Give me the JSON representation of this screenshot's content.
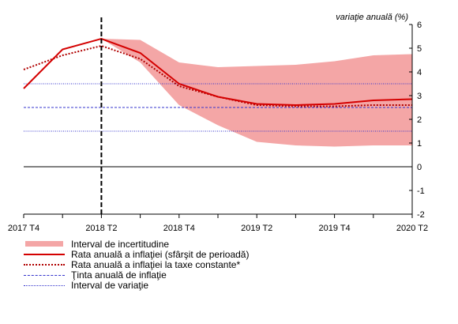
{
  "chart_data": {
    "type": "line",
    "title": "",
    "ylabel": "variaţie anuală (%)",
    "ylim": [
      -2,
      6
    ],
    "yticks": [
      -2,
      -1,
      0,
      1,
      2,
      3,
      4,
      5,
      6
    ],
    "x_categories": [
      "2017 T4",
      "2018 T1",
      "2018 T2",
      "2018 T3",
      "2018 T4",
      "2019 T1",
      "2019 T2",
      "2019 T3",
      "2019 T4",
      "2020 T1",
      "2020 T2"
    ],
    "x_tick_labels": [
      "2017 T4",
      "2018 T2",
      "2018 T4",
      "2019 T2",
      "2019 T4",
      "2020 T2"
    ],
    "x_tick_label_indices": [
      0,
      2,
      4,
      6,
      8,
      10
    ],
    "forecast_start_index": 2,
    "band": {
      "name": "Interval de incertitudine",
      "x": [
        "2018 T2",
        "2018 T3",
        "2018 T4",
        "2019 T1",
        "2019 T2",
        "2019 T3",
        "2019 T4",
        "2020 T1",
        "2020 T2"
      ],
      "upper": [
        5.4,
        5.35,
        4.4,
        4.2,
        4.25,
        4.3,
        4.45,
        4.7,
        4.75
      ],
      "lower": [
        5.4,
        4.4,
        2.6,
        1.75,
        1.05,
        0.9,
        0.85,
        0.9,
        0.9
      ]
    },
    "series": [
      {
        "name": "Rata anuală a inflaţiei (sfârşit de perioadă)",
        "x": [
          "2017 T4",
          "2018 T1",
          "2018 T2",
          "2018 T3",
          "2018 T4",
          "2019 T1",
          "2019 T2",
          "2019 T3",
          "2019 T4",
          "2020 T1",
          "2020 T2"
        ],
        "values": [
          3.3,
          4.95,
          5.4,
          4.8,
          3.5,
          2.95,
          2.65,
          2.6,
          2.65,
          2.8,
          2.85
        ]
      },
      {
        "name": "Rata anuală a inflaţiei la taxe constante*",
        "x": [
          "2017 T4",
          "2018 T1",
          "2018 T2",
          "2018 T3",
          "2018 T4",
          "2019 T1",
          "2019 T2",
          "2019 T3",
          "2019 T4",
          "2020 T1",
          "2020 T2"
        ],
        "values": [
          4.1,
          4.7,
          5.1,
          4.55,
          3.4,
          2.95,
          2.6,
          2.55,
          2.55,
          2.6,
          2.6
        ]
      }
    ],
    "target": {
      "name": "Ţinta anuală de inflaţie",
      "value": 2.5
    },
    "range": {
      "name": "Interval de variaţie",
      "low": 1.5,
      "high": 3.5
    },
    "colors": {
      "band": "#f4a6a6",
      "main_line": "#d40000",
      "dotted_line": "#b00000",
      "target": "#3333cc",
      "zero": "#000000"
    }
  },
  "legend": {
    "items": [
      {
        "label": "Interval de incertitudine"
      },
      {
        "label": "Rata anuală a inflaţiei (sfârşit de perioadă)"
      },
      {
        "label": "Rata anuală a inflaţiei la taxe constante*"
      },
      {
        "label": "Ţinta anuală de inflaţie"
      },
      {
        "label": "Interval de variaţie"
      }
    ]
  }
}
